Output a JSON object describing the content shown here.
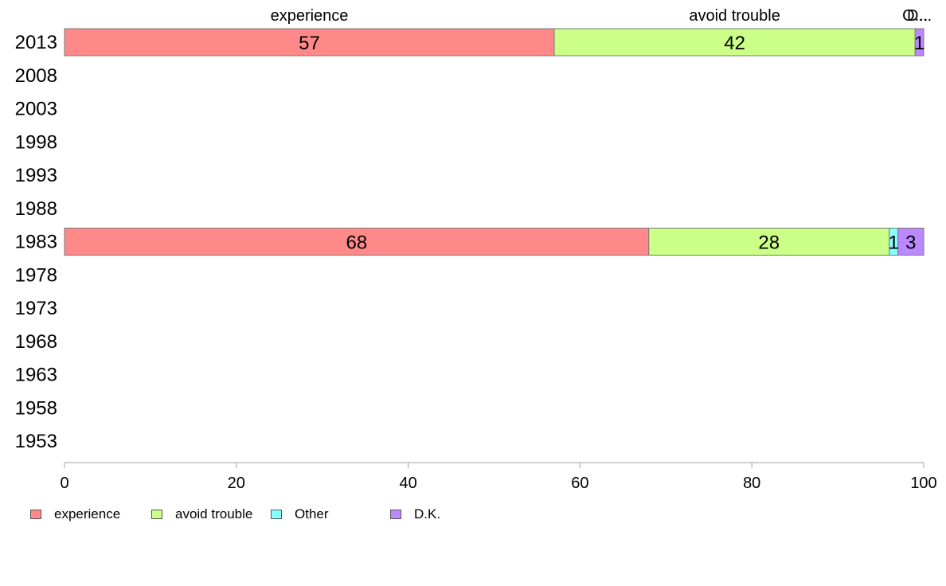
{
  "chart_data": {
    "type": "bar",
    "orientation": "horizontal",
    "stacked": true,
    "categories": [
      "2013",
      "2008",
      "2003",
      "1998",
      "1993",
      "1988",
      "1983",
      "1978",
      "1973",
      "1968",
      "1963",
      "1958",
      "1953"
    ],
    "series": [
      {
        "name": "experience",
        "color": "#ff8888",
        "values": [
          57,
          null,
          null,
          null,
          null,
          null,
          68,
          null,
          null,
          null,
          null,
          null,
          null
        ]
      },
      {
        "name": "avoid trouble",
        "color": "#ccff88",
        "values": [
          42,
          null,
          null,
          null,
          null,
          null,
          28,
          null,
          null,
          null,
          null,
          null,
          null
        ]
      },
      {
        "name": "Other",
        "color": "#88ffff",
        "values": [
          0,
          null,
          null,
          null,
          null,
          null,
          1,
          null,
          null,
          null,
          null,
          null,
          null
        ]
      },
      {
        "name": "D.K.",
        "color": "#bb88ff",
        "values": [
          1,
          null,
          null,
          null,
          null,
          null,
          3,
          null,
          null,
          null,
          null,
          null,
          null
        ]
      }
    ],
    "top_labels": [
      "experience",
      "avoid trouble",
      "O...",
      "D..."
    ],
    "xlim": [
      0,
      100
    ],
    "xticks": [
      "0",
      "20",
      "40",
      "60",
      "80",
      "100"
    ],
    "grid": false,
    "legend_position": "bottom-left"
  }
}
